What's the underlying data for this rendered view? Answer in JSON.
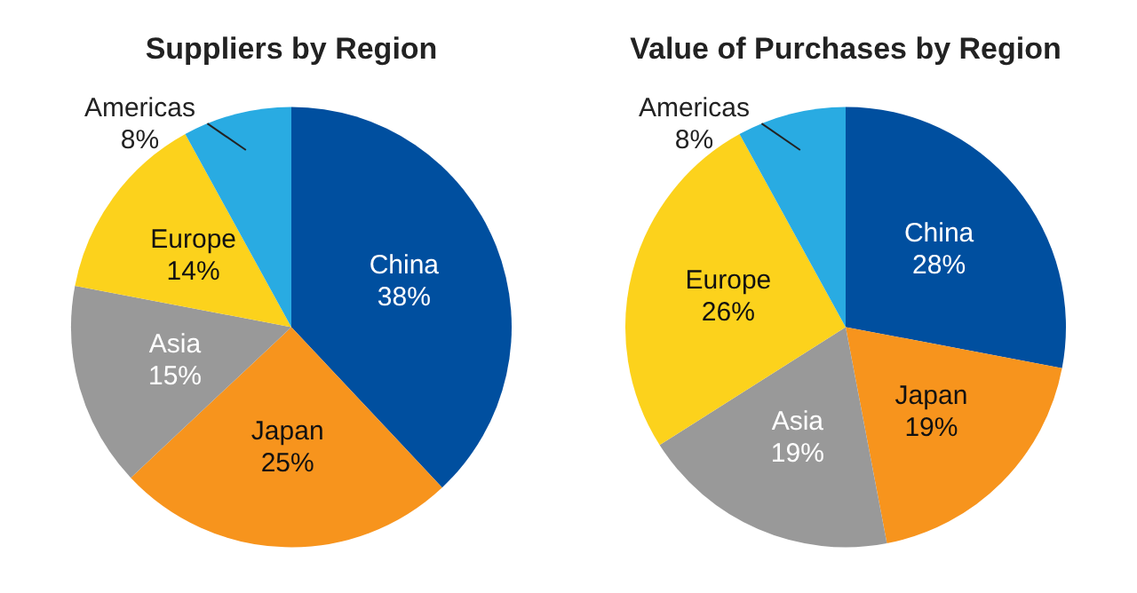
{
  "chart_data": [
    {
      "type": "pie",
      "title": "Suppliers by Region",
      "categories": [
        "China",
        "Japan",
        "Asia",
        "Europe",
        "Americas"
      ],
      "values": [
        38,
        25,
        15,
        14,
        8
      ],
      "value_labels": [
        "38%",
        "25%",
        "15%",
        "14%",
        "8%"
      ],
      "colors": [
        "#004f9f",
        "#f7941d",
        "#999999",
        "#fcd21c",
        "#29abe2"
      ],
      "legend": false
    },
    {
      "type": "pie",
      "title": "Value of Purchases by Region",
      "categories": [
        "China",
        "Japan",
        "Asia",
        "Europe",
        "Americas"
      ],
      "values": [
        28,
        19,
        19,
        26,
        8
      ],
      "value_labels": [
        "28%",
        "19%",
        "19%",
        "26%",
        "8%"
      ],
      "colors": [
        "#004f9f",
        "#f7941d",
        "#999999",
        "#fcd21c",
        "#29abe2"
      ],
      "legend": false
    }
  ]
}
